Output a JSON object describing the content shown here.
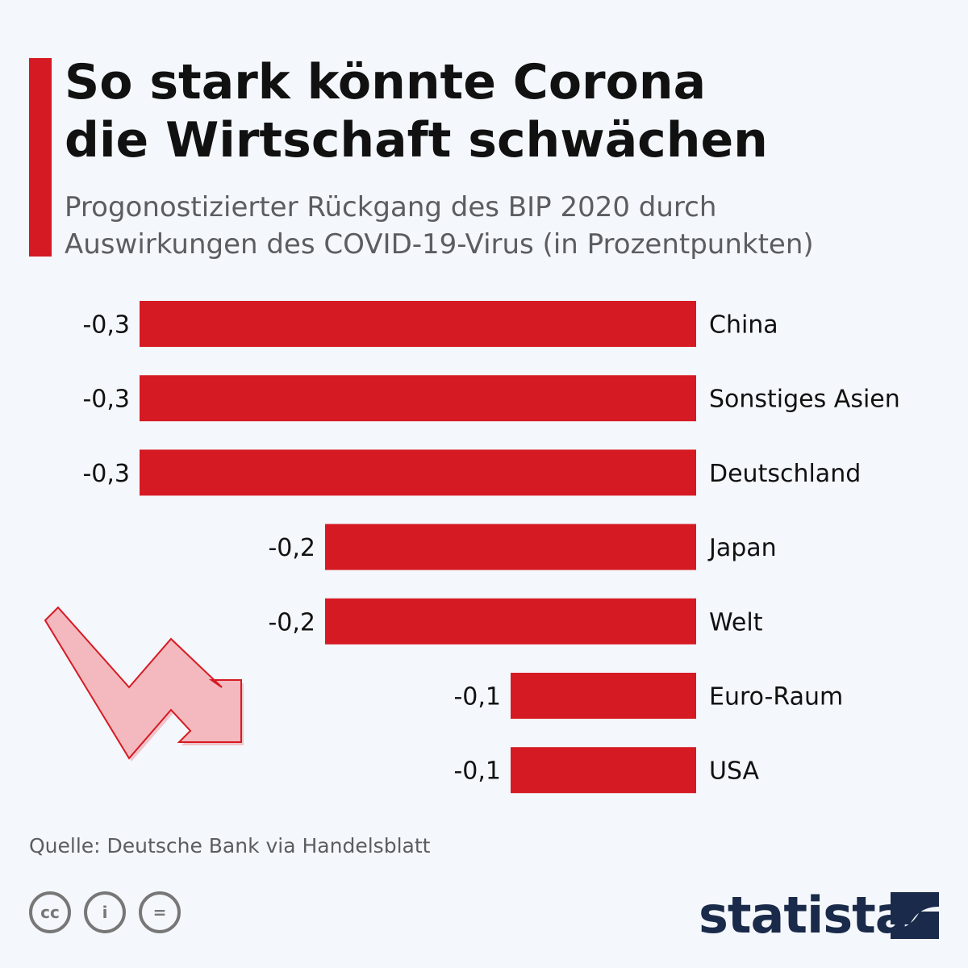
{
  "header": {
    "title": "So stark könnte Corona\ndie Wirtschaft schwächen",
    "subtitle": "Progonostizierter Rückgang des BIP 2020 durch\nAuswirkungen des COVID-19-Virus (in Prozentpunkten)"
  },
  "chart_data": {
    "type": "bar",
    "orientation": "horizontal",
    "categories": [
      "China",
      "Sonstiges Asien",
      "Deutschland",
      "Japan",
      "Welt",
      "Euro-Raum",
      "USA"
    ],
    "values": [
      -0.3,
      -0.3,
      -0.3,
      -0.2,
      -0.2,
      -0.1,
      -0.1
    ],
    "value_labels": [
      "-0,3",
      "-0,3",
      "-0,3",
      "-0,2",
      "-0,2",
      "-0,1",
      "-0,1"
    ],
    "xlim": [
      -0.3,
      0
    ],
    "bar_color": "#d61a23",
    "grid": false
  },
  "decoration": {
    "trend_arrow_icon": "down-trend-arrow-icon",
    "arrow_fill": "#f0b3b8",
    "arrow_stroke": "#d61a23"
  },
  "footer": {
    "source": "Quelle: Deutsche Bank via Handelsblatt",
    "cc_icons": [
      "cc-icon",
      "by-icon",
      "nd-icon"
    ],
    "cc_labels": [
      "cc",
      "i",
      "="
    ],
    "brand": "statista"
  },
  "colors": {
    "accent": "#d61a23",
    "background": "#f4f7fb",
    "brand": "#1a2a4a"
  }
}
